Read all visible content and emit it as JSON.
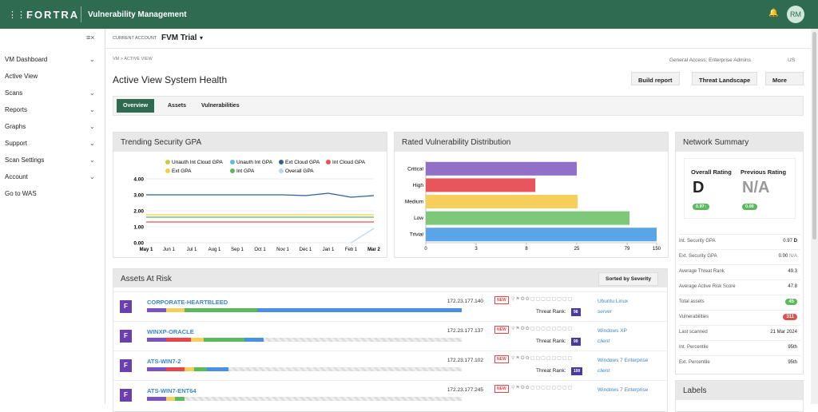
{
  "header": {
    "brand": "FORTRA",
    "app": "Vulnerability Management",
    "user": "RM"
  },
  "sidebar": {
    "items": [
      "VM Dashboard",
      "Active View",
      "Scans",
      "Reports",
      "Graphs",
      "Support",
      "Scan Settings",
      "Account",
      "Go to WAS"
    ]
  },
  "account": {
    "label": "CURRENT ACCOUNT",
    "name": "FVM Trial"
  },
  "breadcrumb": [
    "VM",
    "ACTIVE VIEW"
  ],
  "access": "General Access: Enterprise Admins",
  "region": "US",
  "page_title": "Active View System Health",
  "buttons": [
    "Build report",
    "Threat Landscape",
    "More"
  ],
  "tabs": [
    "Overview",
    "Assets",
    "Vulnerabilities"
  ],
  "chart_data": [
    {
      "type": "line",
      "title": "Trending Security GPA",
      "categories": [
        "May 1",
        "Jun 1",
        "Jul 1",
        "Aug 1",
        "Sep 1",
        "Oct 1",
        "Nov 1",
        "Dec 1",
        "Jan 1",
        "Feb 1",
        "Mar 2"
      ],
      "ylim": [
        0,
        4
      ],
      "yticks": [
        {
          "value": 0,
          "label": "0.00"
        },
        {
          "value": 1,
          "label": "1.00"
        },
        {
          "value": 2,
          "label": "2.00"
        },
        {
          "value": 3,
          "label": "3.00"
        },
        {
          "value": 4,
          "label": "4.00"
        }
      ],
      "grid": true,
      "series": [
        {
          "name": "Unauth Int Cloud GPA",
          "color": "#c9cc3f",
          "values": [
            null,
            null,
            null,
            null,
            null,
            null,
            null,
            null,
            null,
            null,
            null
          ]
        },
        {
          "name": "Unauth Int GPA",
          "color": "#5bc0de",
          "values": [
            null,
            null,
            null,
            null,
            null,
            null,
            null,
            null,
            null,
            null,
            null
          ]
        },
        {
          "name": "Ext Cloud GPA",
          "color": "#2c6391",
          "values": [
            3.0,
            3.0,
            3.0,
            3.0,
            3.0,
            3.0,
            3.0,
            2.95,
            3.1,
            2.85,
            2.95
          ]
        },
        {
          "name": "Int Cloud GPA",
          "color": "#e8554e",
          "values": [
            1.3,
            1.3,
            1.3,
            1.3,
            1.3,
            1.3,
            1.3,
            1.3,
            1.3,
            1.3,
            1.3
          ]
        },
        {
          "name": "Ext GPA",
          "color": "#f2cf4a",
          "values": [
            1.75,
            1.75,
            1.75,
            1.75,
            1.75,
            1.75,
            1.75,
            1.75,
            1.75,
            1.75,
            1.75
          ]
        },
        {
          "name": "Int GPA",
          "color": "#5cb85c",
          "values": [
            1.6,
            1.6,
            1.6,
            1.6,
            1.6,
            1.6,
            1.6,
            1.6,
            1.6,
            1.6,
            1.6
          ]
        },
        {
          "name": "Overall GPA",
          "color": "#b9d6ea",
          "values": [
            null,
            null,
            null,
            null,
            null,
            null,
            null,
            null,
            null,
            0,
            0.9
          ]
        }
      ]
    },
    {
      "type": "bar",
      "orientation": "horizontal",
      "title": "Rated Vulnerability Distribution",
      "categories": [
        "Critical",
        "High",
        "Medium",
        "Low",
        "Trivial"
      ],
      "values": [
        25,
        11,
        26,
        85,
        150
      ],
      "colors": [
        "#9370c8",
        "#e8555a",
        "#f5cf5a",
        "#7ec87a",
        "#5aa5e8"
      ],
      "xlim": [
        0,
        150
      ],
      "xticks": [
        0,
        3,
        8,
        25,
        79,
        150
      ]
    }
  ],
  "network_summary": {
    "title": "Network Summary",
    "overall_label": "Overall Rating",
    "overall": "D",
    "overall_score": "0.97↑",
    "previous_label": "Previous Rating",
    "previous": "N/A",
    "previous_score": "0.00",
    "rows": [
      {
        "label": "Int. Security GPA",
        "value": "0.97",
        "grade": "D"
      },
      {
        "label": "Ext. Security GPA",
        "value": "0.00",
        "grade": "N/A"
      },
      {
        "label": "Average Threat Rank",
        "value": "49.3"
      },
      {
        "label": "Average Active Risk Score",
        "value": "47.8"
      },
      {
        "label": "Total assets",
        "value": "45",
        "badge": "green"
      },
      {
        "label": "Vulnerabilities",
        "value": "311",
        "badge": "red"
      },
      {
        "label": "Last scanned",
        "value": "21 Mar 2024"
      },
      {
        "label": "Int. Percentile",
        "value": "95th"
      },
      {
        "label": "Ext. Percentile",
        "value": "95th"
      }
    ],
    "labels_title": "Labels"
  },
  "assets": {
    "title": "Assets At Risk",
    "sort": "Sorted by Severity",
    "new": "NEW",
    "rank_label": "Threat Rank:",
    "rows": [
      {
        "grade": "F",
        "name": "CORPORATE-HEARTBLEED",
        "ip": "172.23.177.140",
        "rank": 98,
        "os": "Ubuntu Linux",
        "role": "server"
      },
      {
        "grade": "F",
        "name": "WINXP-ORACLE",
        "ip": "172.23.177.137",
        "rank": 99,
        "os": "Windows XP",
        "role": "client"
      },
      {
        "grade": "F",
        "name": "ATS-WIN7-2",
        "ip": "172.23.177.102",
        "rank": 100,
        "os": "Windows 7 Enterprise",
        "role": "client"
      },
      {
        "grade": "F",
        "name": "ATS-WIN7-ENT64",
        "ip": "172.23.177.245",
        "os": "Windows 7 Enterprise"
      }
    ]
  }
}
